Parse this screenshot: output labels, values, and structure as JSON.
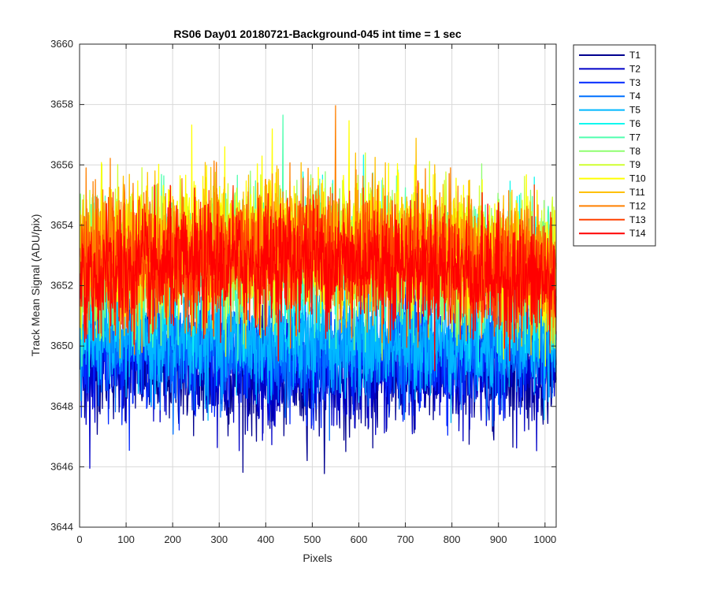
{
  "chart_data": {
    "type": "line",
    "title": "RS06 Day01 20180721-Background-045 int time = 1 sec",
    "xlabel": "Pixels",
    "ylabel": "Track Mean Signal (ADU/pix)",
    "xlim": [
      0,
      1024
    ],
    "ylim": [
      3644,
      3660
    ],
    "xticks": [
      0,
      100,
      200,
      300,
      400,
      500,
      600,
      700,
      800,
      900,
      1000
    ],
    "yticks": [
      3644,
      3646,
      3648,
      3650,
      3652,
      3654,
      3656,
      3658,
      3660
    ],
    "grid": true,
    "legend_position": "outside-top-right",
    "n_points_per_series": 1024,
    "series": [
      {
        "name": "T1",
        "color": "#00008F",
        "mean_profile": [
          [
            0,
            3649.5
          ],
          [
            300,
            3649.0
          ],
          [
            500,
            3648.8
          ],
          [
            700,
            3649.0
          ],
          [
            1024,
            3649.3
          ]
        ],
        "std": 0.9
      },
      {
        "name": "T2",
        "color": "#0000C8",
        "mean_profile": [
          [
            0,
            3649.6
          ],
          [
            300,
            3649.2
          ],
          [
            500,
            3649.0
          ],
          [
            700,
            3649.1
          ],
          [
            1024,
            3649.4
          ]
        ],
        "std": 0.9
      },
      {
        "name": "T3",
        "color": "#0028FF",
        "mean_profile": [
          [
            0,
            3650.0
          ],
          [
            300,
            3649.8
          ],
          [
            500,
            3649.6
          ],
          [
            700,
            3649.7
          ],
          [
            1024,
            3649.9
          ]
        ],
        "std": 0.9
      },
      {
        "name": "T4",
        "color": "#0070FF",
        "mean_profile": [
          [
            0,
            3650.2
          ],
          [
            300,
            3650.0
          ],
          [
            500,
            3649.9
          ],
          [
            700,
            3650.0
          ],
          [
            1024,
            3650.1
          ]
        ],
        "std": 0.9
      },
      {
        "name": "T5",
        "color": "#00B8FF",
        "mean_profile": [
          [
            0,
            3650.4
          ],
          [
            300,
            3650.2
          ],
          [
            500,
            3650.1
          ],
          [
            700,
            3650.2
          ],
          [
            1024,
            3650.3
          ]
        ],
        "std": 0.9
      },
      {
        "name": "T6",
        "color": "#10F8EF",
        "mean_profile": [
          [
            0,
            3652.2
          ],
          [
            300,
            3652.6
          ],
          [
            500,
            3652.8
          ],
          [
            700,
            3652.6
          ],
          [
            1024,
            3652.0
          ]
        ],
        "std": 1.1
      },
      {
        "name": "T7",
        "color": "#50FFAF",
        "mean_profile": [
          [
            0,
            3652.4
          ],
          [
            300,
            3652.8
          ],
          [
            500,
            3653.0
          ],
          [
            700,
            3652.8
          ],
          [
            1024,
            3652.2
          ]
        ],
        "std": 1.1
      },
      {
        "name": "T8",
        "color": "#8FFF70",
        "mean_profile": [
          [
            0,
            3652.6
          ],
          [
            300,
            3653.0
          ],
          [
            500,
            3653.2
          ],
          [
            700,
            3653.0
          ],
          [
            1024,
            3652.4
          ]
        ],
        "std": 1.1
      },
      {
        "name": "T9",
        "color": "#CFFF30",
        "mean_profile": [
          [
            0,
            3652.8
          ],
          [
            300,
            3653.3
          ],
          [
            500,
            3653.4
          ],
          [
            700,
            3653.2
          ],
          [
            1024,
            3652.6
          ]
        ],
        "std": 1.1
      },
      {
        "name": "T10",
        "color": "#FFFF00",
        "mean_profile": [
          [
            0,
            3653.0
          ],
          [
            300,
            3653.5
          ],
          [
            500,
            3653.6
          ],
          [
            700,
            3653.4
          ],
          [
            1024,
            3652.7
          ]
        ],
        "std": 1.1
      },
      {
        "name": "T11",
        "color": "#FFC000",
        "mean_profile": [
          [
            0,
            3652.8
          ],
          [
            300,
            3653.3
          ],
          [
            500,
            3653.5
          ],
          [
            700,
            3653.3
          ],
          [
            1024,
            3652.6
          ]
        ],
        "std": 1.1
      },
      {
        "name": "T12",
        "color": "#FF8000",
        "mean_profile": [
          [
            0,
            3652.6
          ],
          [
            300,
            3653.1
          ],
          [
            500,
            3653.3
          ],
          [
            700,
            3653.1
          ],
          [
            1024,
            3652.4
          ]
        ],
        "std": 1.1
      },
      {
        "name": "T13",
        "color": "#FF4000",
        "mean_profile": [
          [
            0,
            3652.4
          ],
          [
            300,
            3652.9
          ],
          [
            500,
            3653.1
          ],
          [
            700,
            3652.9
          ],
          [
            1024,
            3652.2
          ]
        ],
        "std": 1.0
      },
      {
        "name": "T14",
        "color": "#FF0000",
        "mean_profile": [
          [
            0,
            3652.2
          ],
          [
            300,
            3652.7
          ],
          [
            500,
            3652.9
          ],
          [
            700,
            3652.7
          ],
          [
            1024,
            3652.0
          ]
        ],
        "std": 1.0
      }
    ]
  }
}
